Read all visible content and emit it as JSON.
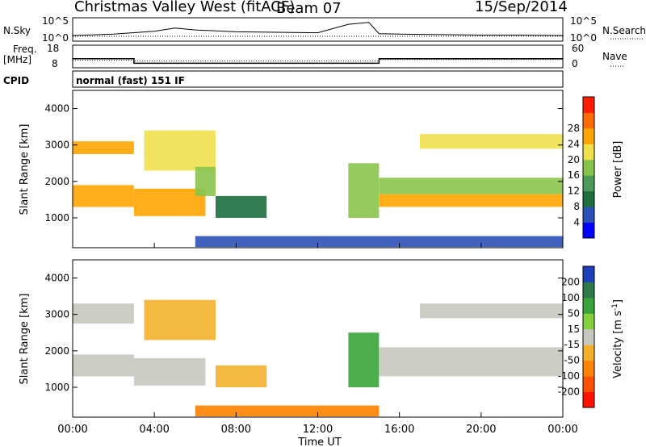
{
  "header": {
    "title": "Christmas Valley West (fitACF)",
    "beam": "Beam 07",
    "date": "15/Sep/2014"
  },
  "top_panels": {
    "nsky_label": "N.Sky",
    "nsky_ticks": [
      "10^5",
      "10^0"
    ],
    "nsearch_label": "N.Search",
    "nsearch_ticks": [
      "10^5",
      "10^0"
    ],
    "freq_label": "Freq.",
    "freq_unit": "[MHz]",
    "freq_ticks": [
      "18",
      "8"
    ],
    "nave_label": "Nave",
    "nave_ticks": [
      "60",
      "0"
    ],
    "cpid_label": "CPID",
    "cpid_value": "normal (fast) 151 IF"
  },
  "colors": {
    "power": [
      "#0000ff",
      "#2c52b8",
      "#1e6e3e",
      "#4d9a5a",
      "#88c44c",
      "#f0e04b",
      "#ffa500",
      "#ff6b00",
      "#ff1f00"
    ],
    "velocity": [
      "#1c3fbc",
      "#2c7a4a",
      "#3aa33a",
      "#86cf3d",
      "#c8c8c0",
      "#f3b12b",
      "#ff8200",
      "#ff5000",
      "#ff1200"
    ]
  },
  "chart_data": [
    {
      "type": "line",
      "title": "N.Sky / N.Search",
      "series": [
        {
          "name": "N.Sky",
          "x": [
            0,
            2,
            4,
            5,
            6,
            8,
            10,
            12,
            13.5,
            14.5,
            15,
            16,
            18,
            20,
            22,
            24
          ],
          "y": [
            1.2,
            1.5,
            2.1,
            2.8,
            2.4,
            2.0,
            1.9,
            1.8,
            3.6,
            4.0,
            1.6,
            1.5,
            1.4,
            1.3,
            1.3,
            1.2
          ]
        }
      ],
      "xlim": [
        0,
        24
      ],
      "ylim": [
        0,
        5
      ]
    },
    {
      "type": "line",
      "title": "Freq. / Nave",
      "series": [
        {
          "name": "Freq.",
          "x": [
            0,
            3,
            3,
            15,
            15,
            24
          ],
          "y": [
            12,
            12,
            10,
            10,
            12,
            12
          ]
        },
        {
          "name": "Nave",
          "x": [
            0,
            3,
            3,
            15,
            15,
            24
          ],
          "y": [
            20,
            20,
            18,
            18,
            22,
            22
          ]
        }
      ],
      "freq_ylim": [
        8,
        18
      ],
      "nave_ylim": [
        0,
        60
      ]
    },
    {
      "type": "heatmap",
      "title": "Power [dB]",
      "xlabel": "Time UT",
      "ylabel": "Slant Range [km]",
      "x_ticks": [
        "00:00",
        "04:00",
        "08:00",
        "12:00",
        "16:00",
        "20:00",
        "00:00"
      ],
      "x_tick_values": [
        0,
        4,
        8,
        12,
        16,
        20,
        24
      ],
      "y_ticks": [
        1000,
        2000,
        3000,
        4000
      ],
      "ylim": [
        180,
        4500
      ],
      "xlim": [
        0,
        24
      ],
      "colorbar_label": "Power [dB]",
      "colorbar_ticks": [
        "4",
        "8",
        "12",
        "16",
        "20",
        "24",
        "28"
      ],
      "regions": [
        {
          "t0": 0,
          "t1": 3,
          "r0": 1300,
          "r1": 1900,
          "level": 26
        },
        {
          "t0": 0,
          "t1": 3,
          "r0": 2750,
          "r1": 3100,
          "level": 24
        },
        {
          "t0": 3,
          "t1": 6.5,
          "r0": 1050,
          "r1": 1800,
          "level": 25
        },
        {
          "t0": 3.5,
          "t1": 7,
          "r0": 2300,
          "r1": 3400,
          "level": 21
        },
        {
          "t0": 6,
          "t1": 7,
          "r0": 1600,
          "r1": 2400,
          "level": 16
        },
        {
          "t0": 7,
          "t1": 9.5,
          "r0": 1000,
          "r1": 1600,
          "level": 10
        },
        {
          "t0": 6,
          "t1": 24,
          "r0": 200,
          "r1": 500,
          "level": 6
        },
        {
          "t0": 13.5,
          "t1": 15,
          "r0": 1000,
          "r1": 2500,
          "level": 18
        },
        {
          "t0": 15,
          "t1": 24,
          "r0": 1300,
          "r1": 1650,
          "level": 25
        },
        {
          "t0": 15,
          "t1": 24,
          "r0": 1650,
          "r1": 2100,
          "level": 16
        },
        {
          "t0": 17,
          "t1": 24,
          "r0": 2900,
          "r1": 3300,
          "level": 21
        }
      ]
    },
    {
      "type": "heatmap",
      "title": "Velocity [m s^-1]",
      "xlabel": "Time UT",
      "ylabel": "Slant Range [km]",
      "x_ticks": [
        "00:00",
        "04:00",
        "08:00",
        "12:00",
        "16:00",
        "20:00",
        "00:00"
      ],
      "x_tick_values": [
        0,
        4,
        8,
        12,
        16,
        20,
        24
      ],
      "y_ticks": [
        1000,
        2000,
        3000,
        4000
      ],
      "ylim": [
        180,
        4500
      ],
      "xlim": [
        0,
        24
      ],
      "colorbar_label": "Velocity [m s^-1]",
      "colorbar_ticks": [
        "200",
        "100",
        "50",
        "15",
        "-15",
        "-50",
        "-100",
        "-200"
      ],
      "regions": [
        {
          "t0": 0,
          "t1": 3,
          "r0": 1300,
          "r1": 1900,
          "level": 0
        },
        {
          "t0": 0,
          "t1": 3,
          "r0": 2750,
          "r1": 3300,
          "level": 0
        },
        {
          "t0": 3,
          "t1": 6.5,
          "r0": 1050,
          "r1": 1800,
          "level": 0
        },
        {
          "t0": 3.5,
          "t1": 7,
          "r0": 2300,
          "r1": 3400,
          "level": -30
        },
        {
          "t0": 7,
          "t1": 9.5,
          "r0": 1000,
          "r1": 1600,
          "level": -40
        },
        {
          "t0": 6,
          "t1": 15,
          "r0": 200,
          "r1": 500,
          "level": -60
        },
        {
          "t0": 13.5,
          "t1": 15,
          "r0": 1000,
          "r1": 2500,
          "level": 40
        },
        {
          "t0": 15,
          "t1": 24,
          "r0": 1300,
          "r1": 2100,
          "level": 0
        },
        {
          "t0": 17,
          "t1": 24,
          "r0": 2900,
          "r1": 3300,
          "level": 0
        }
      ]
    }
  ]
}
